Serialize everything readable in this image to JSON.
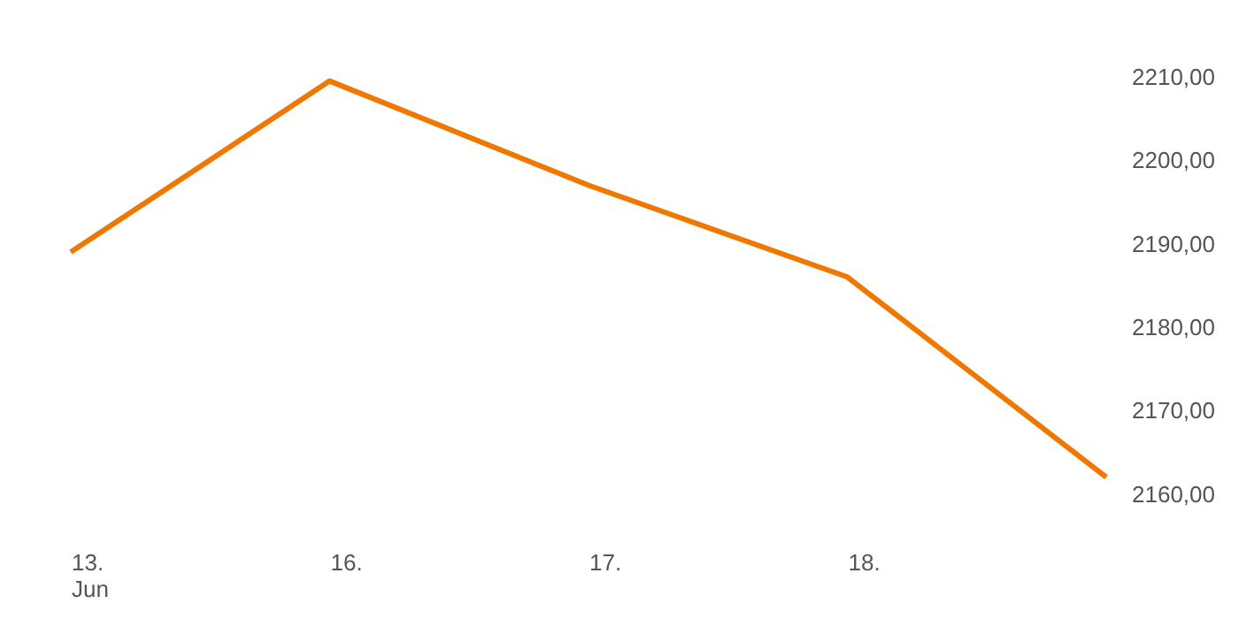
{
  "chart_data": {
    "type": "line",
    "categories": [
      "13.\nJun",
      "16.",
      "17.",
      "18.",
      null
    ],
    "series": [
      {
        "color": "#f07800",
        "values": [
          2189,
          2209.5,
          2197,
          2186,
          2162
        ]
      }
    ],
    "ylim": [
      2145,
      2219
    ],
    "yticks": [
      {
        "value": 2160,
        "label": "2160,00"
      },
      {
        "value": 2170,
        "label": "2170,00"
      },
      {
        "value": 2180,
        "label": "2180,00"
      },
      {
        "value": 2190,
        "label": "2190,00"
      },
      {
        "value": 2200,
        "label": "2200,00"
      },
      {
        "value": 2210,
        "label": "2210,00"
      }
    ],
    "grid": false
  }
}
